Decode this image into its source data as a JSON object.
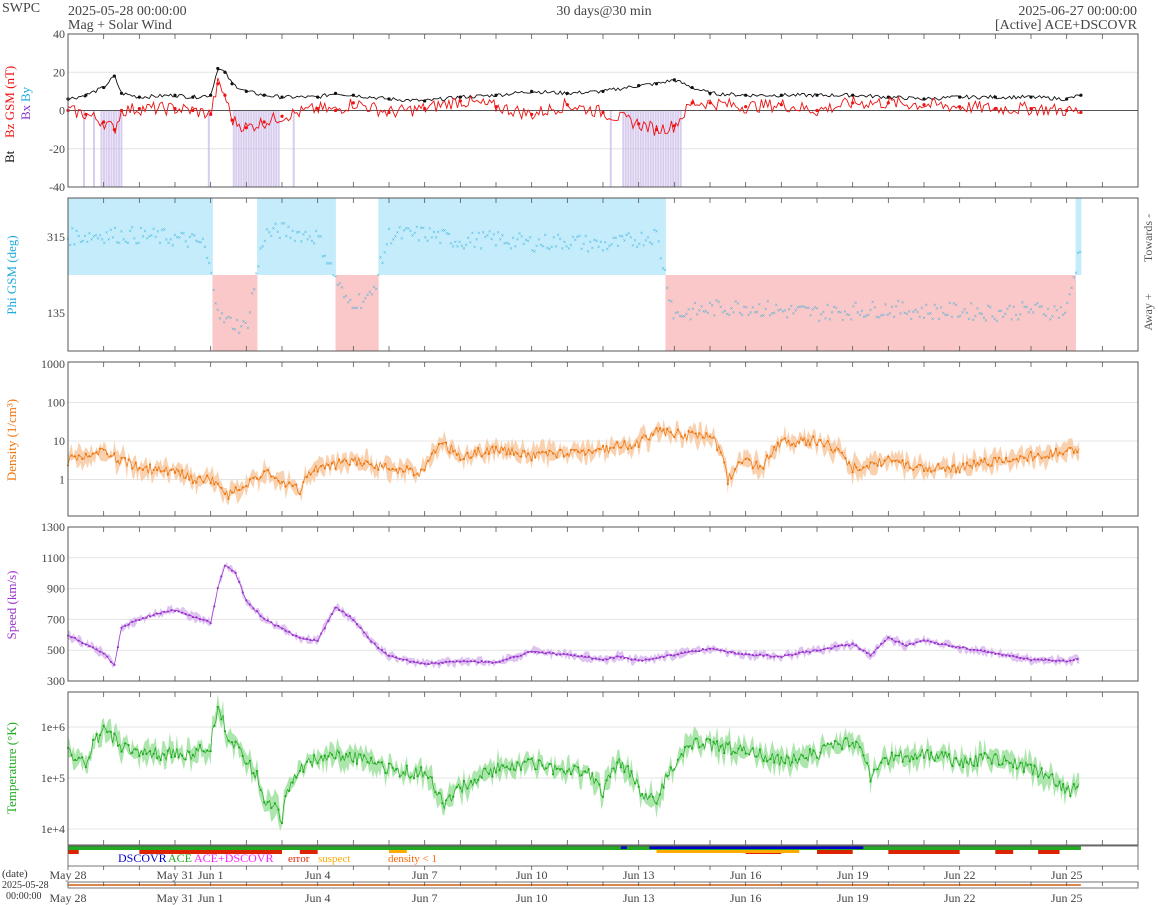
{
  "header": {
    "brand": "SWPC",
    "start_time": "2025-05-28 00:00:00",
    "subtitle": "Mag + Solar Wind",
    "span": "30 days@30 min",
    "end_time": "2025-06-27 00:00:00",
    "source": "[Active] ACE+DSCOVR"
  },
  "x_axis": {
    "date_label": "(date)",
    "start_stamp_line1": "2025-05-28",
    "start_stamp_line2": "00:00:00",
    "ticks": [
      {
        "label": "May 28",
        "day": 0
      },
      {
        "label": "May 31",
        "day": 3
      },
      {
        "label": "Jun 1",
        "day": 4
      },
      {
        "label": "Jun 4",
        "day": 7
      },
      {
        "label": "Jun 7",
        "day": 10
      },
      {
        "label": "Jun 10",
        "day": 13
      },
      {
        "label": "Jun 13",
        "day": 16
      },
      {
        "label": "Jun 16",
        "day": 19
      },
      {
        "label": "Jun 19",
        "day": 22
      },
      {
        "label": "Jun 22",
        "day": 25
      },
      {
        "label": "Jun 25",
        "day": 28
      }
    ],
    "range_days": [
      0,
      30
    ]
  },
  "legend": {
    "dscovr": "DSCOVR",
    "ace": "ACE",
    "ace_dscovr": "ACE+DSCOVR",
    "error": "error",
    "suspect": "suspect",
    "density": "density < 1",
    "colors": {
      "dscovr": "#0000cc",
      "ace": "#22aa22",
      "ace_dscovr": "#ff22ff",
      "error": "#dd2200",
      "suspect": "#ffaa00",
      "density": "#ff6600"
    }
  },
  "chart_data": [
    {
      "type": "line",
      "ylabel_bt": "Bt",
      "ylabel_bz": "Bz GSM (nT)",
      "ylabel_bx": "Bx",
      "ylabel_by": "By",
      "ylim": [
        -40,
        40
      ],
      "yticks": [
        "40",
        "20",
        "0",
        "-20",
        "-40"
      ],
      "colors": {
        "bt": "#111111",
        "bz": "#ee1111",
        "bz_fill": "#c8b8e8"
      },
      "series": [
        {
          "name": "Bt",
          "x": [
            0,
            0.5,
            1,
            1.3,
            1.5,
            2,
            3,
            3.5,
            4,
            4.2,
            4.4,
            4.6,
            5,
            5.5,
            6,
            7,
            7.5,
            8,
            9,
            10,
            11,
            12,
            13,
            14,
            15,
            16,
            16.5,
            17,
            17.5,
            18,
            19,
            20,
            21,
            22,
            23,
            24,
            25,
            26,
            27,
            28,
            28.4
          ],
          "values": [
            6,
            8,
            12,
            18,
            9,
            7,
            8,
            7,
            8,
            22,
            20,
            14,
            10,
            8,
            7,
            7,
            9,
            8,
            6,
            5,
            7,
            8,
            10,
            9,
            10,
            13,
            14,
            16,
            12,
            9,
            8,
            8,
            8,
            8,
            7,
            6,
            7,
            7,
            7,
            6,
            8
          ]
        },
        {
          "name": "Bz",
          "x": [
            0,
            0.5,
            1,
            1.3,
            1.5,
            2,
            3,
            3.5,
            4,
            4.2,
            4.4,
            4.6,
            5,
            5.5,
            6,
            7,
            7.5,
            8,
            9,
            10,
            11,
            12,
            13,
            14,
            15,
            16,
            16.5,
            17,
            17.5,
            18,
            19,
            20,
            21,
            22,
            23,
            24,
            25,
            26,
            27,
            28,
            28.4
          ],
          "values": [
            0,
            -2,
            -6,
            -10,
            0,
            1,
            1,
            0,
            -2,
            14,
            8,
            -5,
            -9,
            -6,
            -3,
            1,
            0,
            4,
            -1,
            1,
            5,
            2,
            -2,
            3,
            -1,
            -7,
            -10,
            -8,
            4,
            4,
            2,
            3,
            0,
            4,
            4,
            3,
            2,
            1,
            1,
            0,
            -1
          ]
        }
      ]
    },
    {
      "type": "scatter",
      "ylabel": "Phi GSM (deg)",
      "yticks": [
        "315",
        "135"
      ],
      "right_labels": {
        "towards": "Towards -",
        "away": "Away +"
      },
      "colors": {
        "points": "#22aadd",
        "towards_fill": "#c5ecfa",
        "away_fill": "#fac8c8"
      },
      "series": [
        {
          "name": "Phi",
          "x": [
            0,
            1,
            2,
            3,
            3.8,
            4.3,
            5,
            5.5,
            6,
            7,
            7.8,
            8.5,
            9,
            10,
            11,
            12,
            13,
            14,
            15,
            15.5,
            16,
            16.5,
            17,
            18,
            19,
            20,
            21,
            22,
            23,
            24,
            25,
            26,
            27,
            28,
            28.4
          ],
          "values": [
            315,
            320,
            318,
            312,
            300,
            120,
            100,
            320,
            330,
            315,
            160,
            170,
            318,
            322,
            305,
            310,
            300,
            305,
            295,
            300,
            310,
            320,
            130,
            145,
            150,
            140,
            135,
            140,
            145,
            138,
            140,
            135,
            142,
            138,
            300
          ]
        }
      ]
    },
    {
      "type": "line",
      "ylabel": "Density (1/cm³)",
      "scale": "log",
      "ylim": [
        0.1,
        1000
      ],
      "yticks": [
        "1000",
        "100",
        "10",
        "1"
      ],
      "colors": {
        "line": "#ee7711",
        "fill": "#f8c9a0"
      },
      "series": [
        {
          "name": "Density",
          "x": [
            0,
            0.5,
            1,
            1.5,
            2,
            3,
            3.5,
            4,
            4.5,
            5,
            5.5,
            6,
            6.5,
            7,
            8,
            9,
            10,
            10.5,
            11,
            12,
            13,
            14,
            15,
            16,
            16.5,
            17,
            18,
            18.5,
            19,
            19.5,
            20,
            21,
            22,
            23,
            24,
            25,
            26,
            27,
            28,
            28.4
          ],
          "values": [
            3,
            4,
            5,
            3,
            2,
            1.5,
            1,
            1,
            0.4,
            0.6,
            1.5,
            0.8,
            0.5,
            2,
            3,
            2,
            1.5,
            8,
            4,
            6,
            4,
            5,
            6,
            9,
            18,
            15,
            12,
            1,
            3,
            2,
            9,
            10,
            2,
            3,
            2,
            2,
            3,
            4,
            5,
            6
          ]
        }
      ]
    },
    {
      "type": "line",
      "ylabel": "Speed (km/s)",
      "ylim": [
        300,
        1300
      ],
      "yticks": [
        "1300",
        "1100",
        "900",
        "700",
        "500",
        "300"
      ],
      "colors": {
        "line": "#9933cc",
        "fill": "#d9b8ee"
      },
      "series": [
        {
          "name": "Speed",
          "x": [
            0,
            0.5,
            1,
            1.3,
            1.5,
            2,
            2.5,
            3,
            3.5,
            4,
            4.2,
            4.4,
            4.7,
            5,
            5.5,
            6,
            6.5,
            7,
            7.5,
            8,
            8.5,
            9,
            10,
            11,
            12,
            13,
            14,
            15,
            15.5,
            16,
            17,
            18,
            19,
            20,
            21,
            22,
            22.5,
            23,
            23.5,
            24,
            25,
            26,
            27,
            28,
            28.4
          ],
          "values": [
            600,
            540,
            480,
            400,
            650,
            700,
            740,
            760,
            720,
            680,
            900,
            1050,
            1000,
            820,
            700,
            640,
            580,
            560,
            780,
            700,
            560,
            460,
            410,
            430,
            420,
            490,
            470,
            440,
            460,
            430,
            470,
            510,
            470,
            460,
            500,
            540,
            470,
            580,
            530,
            560,
            520,
            480,
            440,
            430,
            450
          ]
        }
      ]
    },
    {
      "type": "line",
      "ylabel": "Temperature (°K)",
      "scale": "log",
      "ylim": [
        7000,
        4000000
      ],
      "yticks": [
        "1e+6",
        "1e+5",
        "1e+4"
      ],
      "colors": {
        "line": "#22aa22",
        "fill": "#9ee29e"
      },
      "series": [
        {
          "name": "Temperature",
          "x": [
            0,
            0.5,
            1,
            1.5,
            2,
            3,
            3.5,
            4,
            4.2,
            4.5,
            5,
            5.5,
            6,
            6.5,
            7,
            7.5,
            8,
            8.5,
            9,
            10,
            10.5,
            11,
            12,
            13,
            14,
            14.5,
            15,
            15.5,
            16,
            16.5,
            17,
            17.5,
            18,
            19,
            20,
            21,
            22,
            22.5,
            23,
            24,
            25,
            26,
            27,
            28,
            28.4
          ],
          "values": [
            300000,
            200000,
            800000,
            400000,
            300000,
            300000,
            300000,
            400000,
            2000000,
            600000,
            200000,
            40000,
            15000,
            150000,
            250000,
            300000,
            250000,
            200000,
            150000,
            120000,
            30000,
            60000,
            150000,
            200000,
            120000,
            150000,
            50000,
            200000,
            60000,
            30000,
            150000,
            500000,
            450000,
            350000,
            200000,
            300000,
            500000,
            100000,
            250000,
            300000,
            200000,
            250000,
            150000,
            50000,
            80000
          ]
        }
      ]
    }
  ]
}
